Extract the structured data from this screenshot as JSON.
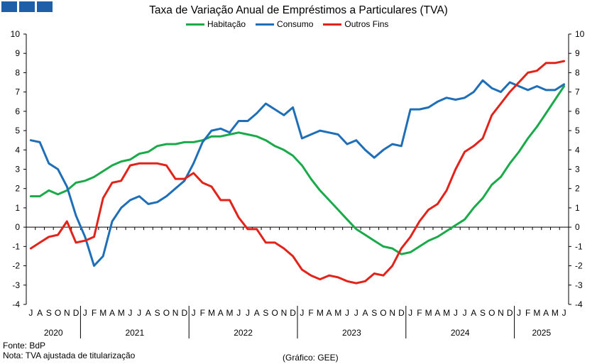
{
  "brand_color": "#1f5fa8",
  "chart_data": {
    "type": "line",
    "title": "Taxa de Variação Anual de Empréstimos a Particulares (TVA)",
    "ylim": [
      -4,
      10
    ],
    "yticks": [
      -4,
      -3,
      -2,
      -1,
      0,
      1,
      2,
      3,
      4,
      5,
      6,
      7,
      8,
      9,
      10
    ],
    "grid": false,
    "legend_position": "top-center",
    "month_labels": [
      "J",
      "A",
      "S",
      "O",
      "N",
      "D",
      "J",
      "F",
      "M",
      "A",
      "M",
      "J",
      "J",
      "A",
      "S",
      "O",
      "N",
      "D",
      "J",
      "F",
      "M",
      "A",
      "M",
      "J",
      "J",
      "A",
      "S",
      "O",
      "N",
      "D",
      "J",
      "F",
      "M",
      "A",
      "M",
      "J",
      "J",
      "A",
      "S",
      "O",
      "N",
      "D",
      "J",
      "F",
      "M",
      "A",
      "M",
      "J",
      "J",
      "A",
      "S",
      "O",
      "N",
      "D",
      "J",
      "F",
      "M",
      "A",
      "M",
      "J"
    ],
    "years": [
      {
        "label": "2020",
        "start": 0,
        "end": 5
      },
      {
        "label": "2021",
        "start": 6,
        "end": 17
      },
      {
        "label": "2022",
        "start": 18,
        "end": 29
      },
      {
        "label": "2023",
        "start": 30,
        "end": 41
      },
      {
        "label": "2024",
        "start": 42,
        "end": 53
      },
      {
        "label": "2025",
        "start": 54,
        "end": 59
      }
    ],
    "series": [
      {
        "name": "Habitação",
        "color": "#1aaa4a",
        "values": [
          1.6,
          1.6,
          1.9,
          1.7,
          1.9,
          2.3,
          2.4,
          2.6,
          2.9,
          3.2,
          3.4,
          3.5,
          3.8,
          3.9,
          4.2,
          4.3,
          4.3,
          4.4,
          4.4,
          4.5,
          4.7,
          4.7,
          4.8,
          4.9,
          4.8,
          4.7,
          4.5,
          4.2,
          4.0,
          3.7,
          3.2,
          2.5,
          1.9,
          1.4,
          0.9,
          0.4,
          -0.1,
          -0.4,
          -0.7,
          -1.0,
          -1.1,
          -1.4,
          -1.3,
          -1.0,
          -0.7,
          -0.5,
          -0.2,
          0.1,
          0.4,
          1.0,
          1.5,
          2.2,
          2.6,
          3.3,
          3.9,
          4.6,
          5.2,
          5.9,
          6.6,
          7.3
        ]
      },
      {
        "name": "Consumo",
        "color": "#1f6eb8",
        "values": [
          4.5,
          4.4,
          3.3,
          3.0,
          2.1,
          0.6,
          -0.5,
          -2.0,
          -1.5,
          0.3,
          1.0,
          1.4,
          1.6,
          1.2,
          1.3,
          1.6,
          2.0,
          2.4,
          3.3,
          4.4,
          5.0,
          5.1,
          4.9,
          5.5,
          5.5,
          5.9,
          6.4,
          6.1,
          5.8,
          6.2,
          4.6,
          4.8,
          5.0,
          4.9,
          4.8,
          4.3,
          4.5,
          4.0,
          3.6,
          4.0,
          4.3,
          4.2,
          6.1,
          6.1,
          6.2,
          6.5,
          6.7,
          6.6,
          6.7,
          7.0,
          7.6,
          7.2,
          7.0,
          7.5,
          7.3,
          7.1,
          7.3,
          7.1,
          7.1,
          7.4
        ]
      },
      {
        "name": "Outros Fins",
        "color": "#e2231a",
        "values": [
          -1.1,
          -0.8,
          -0.5,
          -0.4,
          0.3,
          -0.8,
          -0.7,
          -0.5,
          1.5,
          2.3,
          2.4,
          3.2,
          3.3,
          3.3,
          3.3,
          3.2,
          2.5,
          2.5,
          2.8,
          2.3,
          2.1,
          1.4,
          1.4,
          0.5,
          -0.1,
          -0.1,
          -0.8,
          -0.8,
          -1.1,
          -1.5,
          -2.2,
          -2.5,
          -2.7,
          -2.5,
          -2.6,
          -2.8,
          -2.9,
          -2.8,
          -2.4,
          -2.5,
          -2.0,
          -1.1,
          -0.5,
          0.3,
          0.9,
          1.2,
          1.9,
          3.0,
          3.9,
          4.2,
          4.6,
          5.8,
          6.4,
          7.0,
          7.5,
          8.0,
          8.1,
          8.5,
          8.5,
          8.6
        ]
      }
    ]
  },
  "footer": {
    "source": "Fonte: BdP",
    "note": "Nota: TVA ajustada de titularização",
    "credit": "(Gráfico: GEE)"
  }
}
